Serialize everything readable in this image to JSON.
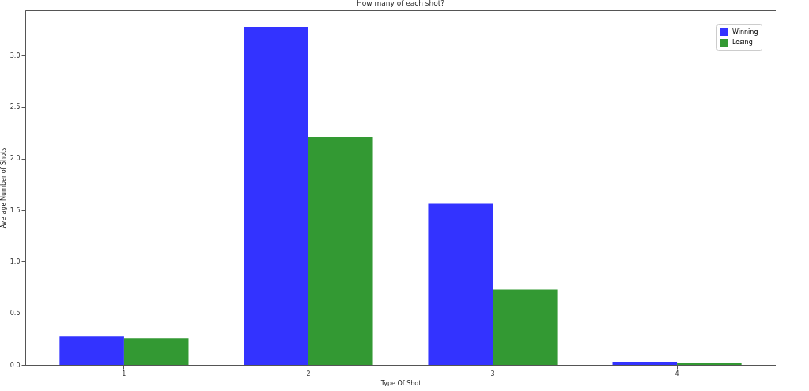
{
  "chart_data": {
    "type": "bar",
    "title": "How many of each shot?",
    "xlabel": "Type Of Shot",
    "ylabel": "Average Number of Shots",
    "categories": [
      "1",
      "2",
      "3",
      "4"
    ],
    "series": [
      {
        "name": "Winning",
        "color": "#3333ff",
        "values": [
          0.274,
          3.28,
          1.567,
          0.031
        ]
      },
      {
        "name": "Losing",
        "color": "#339933",
        "values": [
          0.259,
          2.21,
          0.732,
          0.015
        ]
      }
    ],
    "ylim": [
      0,
      3.44
    ],
    "yticks": [
      {
        "value": 0,
        "label": "0.0"
      },
      {
        "value": 0.5,
        "label": "0.5"
      },
      {
        "value": 1,
        "label": "1.0"
      },
      {
        "value": 1.5,
        "label": "1.5"
      },
      {
        "value": 2,
        "label": "2.0"
      },
      {
        "value": 2.5,
        "label": "2.5"
      },
      {
        "value": 3,
        "label": "3.0"
      }
    ],
    "grid": false,
    "legend": "top right"
  }
}
